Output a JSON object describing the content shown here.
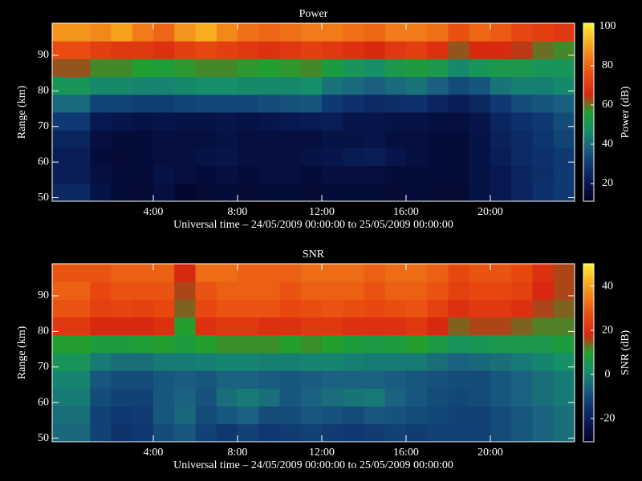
{
  "chart_data": [
    {
      "type": "heatmap",
      "title": "Power",
      "xlabel": "Universal time – 24/05/2009 00:00:00 to 25/05/2009 00:00:00",
      "ylabel": "Range (km)",
      "colorbar_label": "Power (dB)",
      "xlim": [
        -0.8,
        24
      ],
      "xticks": [
        {
          "value": 4,
          "label": "4:00"
        },
        {
          "value": 8,
          "label": "8:00"
        },
        {
          "value": 12,
          "label": "12:00"
        },
        {
          "value": 16,
          "label": "16:00"
        },
        {
          "value": 20,
          "label": "20:00"
        }
      ],
      "ylim": [
        49,
        99
      ],
      "yticks": [
        50,
        60,
        70,
        80,
        90
      ],
      "clim": [
        11,
        101.6
      ],
      "cticks": [
        20,
        40,
        60,
        80,
        100
      ],
      "colormap": [
        "#000020",
        "#081850",
        "#0e3570",
        "#1a6080",
        "#15906a",
        "#20a030",
        "#d82810",
        "#e84810",
        "#f07818",
        "#f8b020",
        "#fff030"
      ],
      "x_edges": [
        -0.8,
        1,
        2,
        3,
        4,
        5,
        6,
        7,
        8,
        9,
        10,
        11,
        12,
        13,
        14,
        15,
        16,
        17,
        18,
        19,
        20,
        21,
        22,
        23,
        24
      ],
      "y_edges": [
        49,
        54,
        59,
        64,
        69,
        74,
        79,
        84,
        89,
        94,
        99
      ],
      "z": [
        [
          25,
          18,
          16,
          15,
          17,
          14,
          15,
          16,
          15,
          16,
          16,
          15,
          16,
          16,
          16,
          15,
          16,
          15,
          15,
          18,
          20,
          24,
          28,
          30
        ],
        [
          22,
          17,
          16,
          16,
          18,
          17,
          16,
          17,
          16,
          17,
          17,
          16,
          17,
          17,
          17,
          16,
          16,
          16,
          16,
          18,
          20,
          24,
          27,
          30
        ],
        [
          22,
          16,
          15,
          16,
          17,
          17,
          18,
          19,
          17,
          17,
          17,
          18,
          19,
          21,
          22,
          19,
          17,
          16,
          16,
          18,
          22,
          26,
          28,
          30
        ],
        [
          24,
          17,
          16,
          16,
          17,
          17,
          17,
          18,
          17,
          17,
          17,
          17,
          18,
          18,
          19,
          17,
          17,
          16,
          16,
          18,
          23,
          26,
          29,
          32
        ],
        [
          30,
          20,
          19,
          18,
          19,
          18,
          18,
          19,
          18,
          19,
          20,
          21,
          22,
          19,
          19,
          18,
          18,
          17,
          17,
          19,
          24,
          28,
          30,
          34
        ],
        [
          40,
          32,
          32,
          31,
          31,
          32,
          33,
          33,
          33,
          34,
          35,
          36,
          30,
          28,
          26,
          27,
          28,
          24,
          22,
          25,
          30,
          34,
          36,
          38
        ],
        [
          50,
          46,
          46,
          45,
          45,
          46,
          47,
          47,
          46,
          46,
          46,
          47,
          42,
          40,
          38,
          40,
          42,
          38,
          34,
          36,
          42,
          44,
          44,
          46
        ],
        [
          62,
          58,
          58,
          56,
          55,
          57,
          58,
          58,
          57,
          56,
          57,
          58,
          54,
          50,
          48,
          52,
          54,
          52,
          46,
          50,
          52,
          52,
          50,
          50
        ],
        [
          75,
          72,
          70,
          70,
          68,
          72,
          74,
          72,
          70,
          68,
          70,
          72,
          70,
          68,
          66,
          70,
          72,
          68,
          62,
          66,
          66,
          64,
          60,
          58
        ],
        [
          88,
          86,
          90,
          84,
          80,
          88,
          92,
          86,
          82,
          80,
          82,
          84,
          84,
          82,
          80,
          84,
          84,
          82,
          76,
          80,
          78,
          74,
          72,
          70
        ]
      ]
    },
    {
      "type": "heatmap",
      "title": "SNR",
      "xlabel": "Universal time – 24/05/2009 00:00:00 to 25/05/2009 00:00:00",
      "ylabel": "Range (km)",
      "colorbar_label": "SNR (dB)",
      "xlim": [
        -0.8,
        24
      ],
      "xticks": [
        {
          "value": 4,
          "label": "4:00"
        },
        {
          "value": 8,
          "label": "8:00"
        },
        {
          "value": 12,
          "label": "12:00"
        },
        {
          "value": 16,
          "label": "16:00"
        },
        {
          "value": 20,
          "label": "20:00"
        }
      ],
      "ylim": [
        49,
        99
      ],
      "yticks": [
        50,
        60,
        70,
        80,
        90
      ],
      "clim": [
        -30.5,
        50.2
      ],
      "cticks": [
        -20,
        0,
        20,
        40
      ],
      "colormap": [
        "#000020",
        "#081850",
        "#0e3570",
        "#1a6080",
        "#15906a",
        "#20a030",
        "#d82810",
        "#e84810",
        "#f07818",
        "#f8b020",
        "#fff030"
      ],
      "x_edges": [
        -0.8,
        1,
        2,
        3,
        4,
        5,
        6,
        7,
        8,
        9,
        10,
        11,
        12,
        13,
        14,
        15,
        16,
        17,
        18,
        19,
        20,
        21,
        22,
        23,
        24
      ],
      "y_edges": [
        49,
        54,
        59,
        64,
        69,
        74,
        79,
        84,
        89,
        94,
        99
      ],
      "z": [
        [
          -5,
          -12,
          -15,
          -14,
          -10,
          -8,
          -12,
          -14,
          -12,
          -14,
          -13,
          -12,
          -13,
          -14,
          -13,
          -12,
          -13,
          -12,
          -12,
          -12,
          -10,
          -8,
          -6,
          -4
        ],
        [
          -4,
          -12,
          -14,
          -13,
          -8,
          -5,
          -10,
          -8,
          -6,
          -10,
          -10,
          -8,
          -9,
          -10,
          -8,
          -9,
          -10,
          -11,
          -12,
          -12,
          -10,
          -8,
          -6,
          -4
        ],
        [
          -2,
          -10,
          -12,
          -12,
          -8,
          -6,
          -9,
          -4,
          -2,
          -4,
          -8,
          -6,
          -4,
          -3,
          -2,
          -6,
          -8,
          -10,
          -11,
          -10,
          -8,
          -6,
          -4,
          -2
        ],
        [
          0,
          -8,
          -10,
          -10,
          -8,
          -7,
          -8,
          -6,
          -6,
          -7,
          -8,
          -7,
          -6,
          -6,
          -6,
          -7,
          -8,
          -9,
          -10,
          -10,
          -8,
          -6,
          -4,
          -2
        ],
        [
          4,
          -2,
          -4,
          -4,
          -2,
          -2,
          -1,
          0,
          0,
          -1,
          -1,
          0,
          0,
          -1,
          -2,
          -2,
          -2,
          -4,
          -6,
          -5,
          -4,
          -2,
          0,
          2
        ],
        [
          10,
          8,
          8,
          9,
          10,
          8,
          10,
          11,
          11,
          11,
          10,
          11,
          10,
          8,
          7,
          8,
          10,
          7,
          4,
          5,
          6,
          6,
          6,
          8
        ],
        [
          22,
          18,
          18,
          18,
          20,
          10,
          20,
          22,
          22,
          20,
          20,
          22,
          22,
          20,
          20,
          20,
          22,
          18,
          14,
          16,
          16,
          14,
          12,
          12
        ],
        [
          28,
          24,
          25,
          24,
          26,
          14,
          26,
          28,
          28,
          28,
          26,
          27,
          28,
          27,
          26,
          27,
          28,
          24,
          20,
          22,
          22,
          20,
          16,
          14
        ],
        [
          30,
          26,
          28,
          28,
          28,
          16,
          28,
          30,
          30,
          30,
          28,
          30,
          30,
          30,
          28,
          30,
          30,
          28,
          24,
          26,
          26,
          24,
          18,
          16
        ],
        [
          28,
          28,
          30,
          30,
          30,
          18,
          32,
          32,
          30,
          30,
          30,
          32,
          32,
          32,
          30,
          32,
          32,
          30,
          26,
          28,
          28,
          26,
          20,
          16
        ]
      ]
    }
  ]
}
